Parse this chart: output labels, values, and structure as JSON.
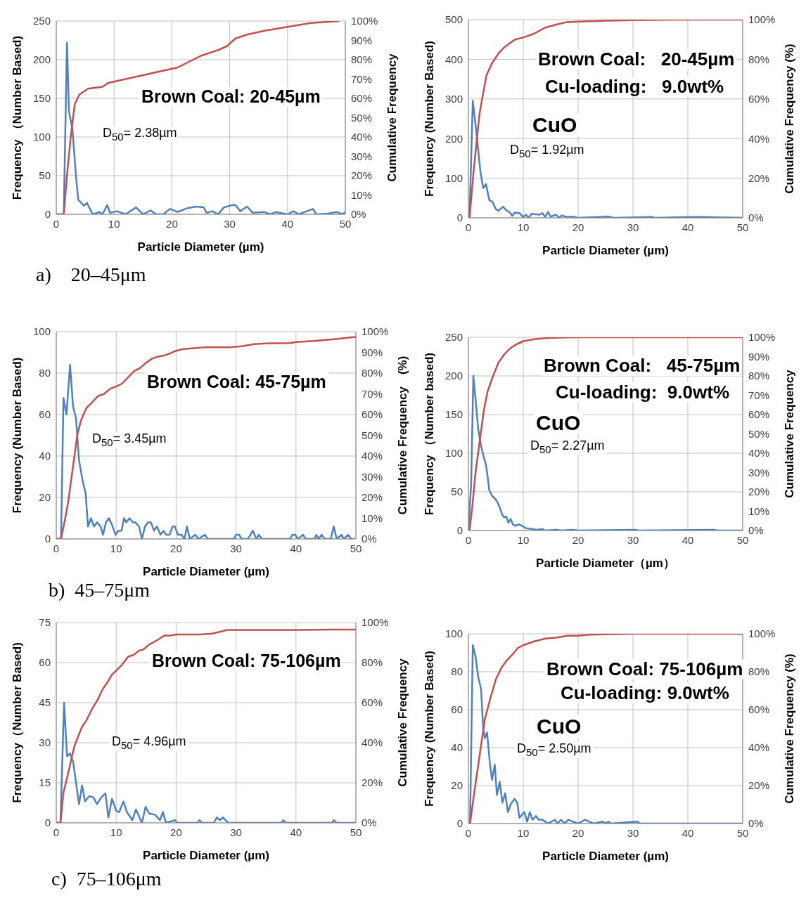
{
  "chart_data": [
    {
      "type": "line",
      "title": "Brown Coal: 20-45µm",
      "xlabel": "Particle Diameter (µm)",
      "ylabel": "Frequency （Number Based)",
      "y2label": "Cumulative Frequency",
      "annotations": [
        "D$_{50}$= 2.38µm",
        "a)    20–45μm"
      ],
      "xlim": [
        0,
        50
      ],
      "xticks": [
        0,
        10,
        20,
        30,
        40,
        50
      ],
      "ylim": [
        0,
        250
      ],
      "yticks": [
        0,
        50,
        100,
        150,
        200,
        250
      ],
      "y2lim": [
        0,
        100
      ],
      "y2ticks": [
        {
          "value": 0,
          "label": "0%"
        },
        {
          "value": 10,
          "label": "10%"
        },
        {
          "value": 20,
          "label": "20%"
        },
        {
          "value": 30,
          "label": "30%"
        },
        {
          "value": 40,
          "label": "40%"
        },
        {
          "value": 50,
          "label": "50%"
        },
        {
          "value": 60,
          "label": "60%"
        },
        {
          "value": 70,
          "label": "70%"
        },
        {
          "value": 80,
          "label": "80%"
        },
        {
          "value": 90,
          "label": "90%"
        },
        {
          "value": 100,
          "label": "100%"
        }
      ],
      "grid": true,
      "marker": "none",
      "series": [
        {
          "color": "#4f81bd",
          "x": [
            0,
            1.3,
            1.85,
            2.2,
            2.8,
            3.4,
            3.8,
            4.8,
            5.3,
            6.3,
            7.5,
            8,
            8.8,
            9.3,
            10.5,
            12,
            13.8,
            15,
            16.3,
            17.3,
            18.5,
            19.7,
            21,
            22.7,
            24.2,
            25.5,
            26,
            27,
            28,
            29,
            30.5,
            31,
            31.8,
            33,
            34,
            36,
            37,
            38,
            40,
            41,
            42,
            43,
            44.4,
            45,
            47,
            48.5,
            49.5,
            50
          ],
          "values": [
            0,
            0,
            222,
            133,
            110,
            50,
            19,
            11,
            15,
            0,
            3,
            0,
            12,
            2,
            4,
            0,
            9,
            0,
            5,
            0,
            0,
            7,
            3,
            8,
            10,
            9,
            2,
            4,
            0,
            9,
            12,
            12,
            4,
            10,
            2,
            3,
            0,
            3,
            0,
            4,
            0,
            3,
            7,
            0,
            1,
            3,
            0,
            3
          ]
        },
        {
          "color": "#c0504d",
          "axis": "y2",
          "x": [
            0,
            1.3,
            1.85,
            2.5,
            3.2,
            4,
            5.5,
            8,
            9,
            12,
            15,
            18,
            21,
            23,
            25,
            28,
            29.5,
            31,
            33,
            36,
            40,
            44,
            49
          ],
          "values": [
            0,
            0,
            20,
            40,
            57,
            62,
            65,
            66,
            68,
            70,
            72,
            74,
            76,
            79,
            82,
            85,
            87,
            91,
            93,
            95,
            97,
            99,
            100
          ]
        }
      ]
    },
    {
      "type": "line",
      "title": "Brown Coal:   20-45µm",
      "subtitle": "Cu-loading:   9.0wt%",
      "xlabel": "Particle Diameter (µm)",
      "ylabel": "Frequency (Number Based)",
      "y2label": "Cumulative Frequency (%)",
      "annotations": [
        "CuO",
        "D$_{50}$= 1.92µm"
      ],
      "xlim": [
        0,
        50
      ],
      "xticks": [
        0,
        10,
        20,
        30,
        40,
        50
      ],
      "ylim": [
        0,
        500
      ],
      "yticks": [
        0,
        100,
        200,
        300,
        400,
        500
      ],
      "y2lim": [
        0,
        100
      ],
      "y2ticks": [
        {
          "value": 0,
          "label": "0%"
        },
        {
          "value": 20,
          "label": "20%"
        },
        {
          "value": 40,
          "label": "40%"
        },
        {
          "value": 60,
          "label": "60%"
        },
        {
          "value": 80,
          "label": "80%"
        },
        {
          "value": 100,
          "label": "100%"
        }
      ],
      "grid": true,
      "marker": "none",
      "series": [
        {
          "color": "#4f81bd",
          "x": [
            0.2,
            0.8,
            1.5,
            2.2,
            2.7,
            3.2,
            3.8,
            4.4,
            5,
            5.5,
            6.3,
            7,
            7.5,
            8,
            8.4,
            9.3,
            10,
            10.5,
            11,
            11.5,
            13,
            13.5,
            14,
            14.5,
            15,
            16,
            16.5,
            17,
            18,
            19,
            20,
            25.5,
            26.5,
            33.5,
            34,
            40.7,
            42.7,
            50
          ],
          "values": [
            0,
            295,
            210,
            115,
            75,
            85,
            45,
            40,
            22,
            18,
            28,
            18,
            14,
            5,
            13,
            12,
            2,
            8,
            0,
            10,
            8,
            12,
            2,
            15,
            3,
            8,
            0,
            6,
            2,
            3,
            0,
            3,
            0,
            2,
            0,
            2,
            2,
            0
          ]
        },
        {
          "color": "#c0504d",
          "axis": "y2",
          "x": [
            0.2,
            1,
            2,
            2.5,
            3.3,
            4.3,
            5.5,
            6.5,
            7.5,
            8.5,
            10,
            12,
            14,
            16,
            18,
            20,
            25,
            30,
            38,
            50
          ],
          "values": [
            0,
            25,
            52,
            60,
            72,
            78,
            83,
            86,
            88,
            90,
            91,
            93,
            96,
            97.5,
            98.8,
            99,
            99.5,
            99.7,
            100,
            100
          ]
        }
      ]
    },
    {
      "type": "line",
      "title": "Brown Coal: 45-75µm",
      "xlabel": "Particle Diameter (µm)",
      "ylabel": "Frequency (Number Based)",
      "y2label": "Cumulative Frequency　(%)",
      "annotations": [
        "D$_{50}$= 3.45µm",
        "b)  45–75μm"
      ],
      "xlim": [
        0,
        50
      ],
      "xticks": [
        0,
        10,
        20,
        30,
        40,
        50
      ],
      "ylim": [
        0,
        100
      ],
      "yticks": [
        0,
        20,
        40,
        60,
        80,
        100
      ],
      "y2lim": [
        0,
        100
      ],
      "y2ticks": [
        {
          "value": 0,
          "label": "0%"
        },
        {
          "value": 10,
          "label": "10%"
        },
        {
          "value": 20,
          "label": "20%"
        },
        {
          "value": 30,
          "label": "30%"
        },
        {
          "value": 40,
          "label": "40%"
        },
        {
          "value": 50,
          "label": "50%"
        },
        {
          "value": 60,
          "label": "60%"
        },
        {
          "value": 70,
          "label": "70%"
        },
        {
          "value": 80,
          "label": "80%"
        },
        {
          "value": 90,
          "label": "90%"
        },
        {
          "value": 100,
          "label": "100%"
        }
      ],
      "grid": true,
      "marker": "none",
      "series": [
        {
          "color": "#4f81bd",
          "x": [
            0,
            0.8,
            1.2,
            1.7,
            2.3,
            2.8,
            3.3,
            3.8,
            4.4,
            4.9,
            5.3,
            5.8,
            6.3,
            6.8,
            7.4,
            7.8,
            8.3,
            8.8,
            9.4,
            9.9,
            10.4,
            10.9,
            11.3,
            11.7,
            12.2,
            12.8,
            13.2,
            13.8,
            14.3,
            14.8,
            15.3,
            15.8,
            16.3,
            16.8,
            17.4,
            17.9,
            18.3,
            18.9,
            19.4,
            19.8,
            20.3,
            20.9,
            21.4,
            21.8,
            22.3,
            23.2,
            23.7,
            24.8,
            25.3,
            29.7,
            30,
            30.5,
            31,
            32,
            32.8,
            33.4,
            33.8,
            34.3,
            39,
            39.4,
            39.9,
            40.3,
            41.2,
            41.6,
            43.1,
            43.4,
            43.8,
            44.3,
            44.8,
            45.8,
            46.3,
            46.8,
            47.6,
            48,
            48.7,
            49.2,
            49.8
          ],
          "values": [
            0,
            0,
            68,
            60,
            84,
            64,
            58,
            38,
            28,
            22,
            6,
            10,
            6,
            8,
            6,
            2,
            8,
            10,
            6,
            2,
            4,
            4,
            10,
            8,
            10,
            8,
            8,
            6,
            0,
            6,
            8,
            8,
            4,
            6,
            2,
            4,
            2,
            2,
            6,
            6,
            2,
            2,
            0,
            6,
            0,
            2,
            0,
            2,
            0,
            0,
            2,
            2,
            0,
            0,
            4,
            0,
            2,
            0,
            0,
            2,
            2,
            0,
            2,
            0,
            0,
            2,
            0,
            2,
            0,
            0,
            6,
            0,
            2,
            0,
            2,
            0,
            0
          ]
        },
        {
          "color": "#c0504d",
          "axis": "y2",
          "x": [
            0,
            0.8,
            1.5,
            2,
            2.8,
            3.5,
            4.1,
            5,
            6,
            7,
            8,
            9,
            10,
            11,
            12,
            13,
            14,
            15,
            16,
            17,
            18,
            19,
            19.7,
            21,
            23,
            25,
            29,
            31,
            33,
            35,
            39,
            40,
            43,
            45,
            47,
            48.5,
            50
          ],
          "values": [
            0,
            0,
            10,
            18,
            35,
            50,
            57,
            63,
            66,
            69,
            70,
            72.5,
            73.5,
            75,
            78,
            81,
            82.5,
            85,
            87,
            88,
            88.5,
            89.5,
            90.5,
            91.5,
            92,
            92.5,
            92.5,
            93,
            94,
            94.3,
            94.5,
            95,
            95.5,
            96,
            96.5,
            97,
            97.5
          ]
        }
      ]
    },
    {
      "type": "line",
      "title": "Brown Coal:   45-75µm",
      "subtitle": "Cu-loading:  9.0wt%",
      "xlabel": "Particle Diameter（µm）",
      "ylabel": "Frequency （Number based)",
      "y2label": "Cumulative Frequency",
      "annotations": [
        "CuO",
        "D$_{50}$= 2.27µm"
      ],
      "xlim": [
        0,
        50
      ],
      "xticks": [
        0,
        10,
        20,
        30,
        40,
        50
      ],
      "ylim": [
        0,
        250
      ],
      "yticks": [
        0,
        50,
        100,
        150,
        200,
        250
      ],
      "y2lim": [
        0,
        100
      ],
      "y2ticks": [
        {
          "value": 0,
          "label": "0%"
        },
        {
          "value": 10,
          "label": "10%"
        },
        {
          "value": 20,
          "label": "20%"
        },
        {
          "value": 30,
          "label": "30%"
        },
        {
          "value": 40,
          "label": "40%"
        },
        {
          "value": 50,
          "label": "50%"
        },
        {
          "value": 60,
          "label": "60%"
        },
        {
          "value": 70,
          "label": "70%"
        },
        {
          "value": 80,
          "label": "80%"
        },
        {
          "value": 90,
          "label": "90%"
        },
        {
          "value": 100,
          "label": "100%"
        }
      ],
      "grid": true,
      "marker": "none",
      "series": [
        {
          "color": "#4f81bd",
          "x": [
            0,
            0.5,
            0.9,
            1.3,
            1.8,
            2.3,
            2.8,
            3.2,
            3.5,
            3.8,
            4.3,
            5,
            5.4,
            5.8,
            6.2,
            6.5,
            6.9,
            7.3,
            7.7,
            8.1,
            8.6,
            9.2,
            9.8,
            10.5,
            11.5,
            12.5,
            13.5,
            14,
            16,
            17,
            19,
            20,
            30.5,
            31,
            44.8,
            45.3,
            50
          ],
          "values": [
            0,
            60,
            200,
            170,
            130,
            110,
            95,
            85,
            70,
            52,
            45,
            40,
            35,
            28,
            20,
            17,
            18,
            10,
            15,
            8,
            6,
            8,
            6,
            3,
            2,
            1,
            2,
            0,
            1,
            0,
            1,
            0,
            1,
            0,
            1,
            0,
            0
          ]
        },
        {
          "color": "#c0504d",
          "axis": "y2",
          "x": [
            0.2,
            0.7,
            1.3,
            2,
            2.8,
            3.5,
            4.5,
            5.5,
            6.5,
            7.5,
            8.5,
            10,
            12,
            15,
            20,
            50
          ],
          "values": [
            0,
            12,
            30,
            45,
            62,
            72,
            80,
            87,
            91,
            94,
            96,
            98,
            99,
            99.7,
            100,
            100
          ]
        }
      ]
    },
    {
      "type": "line",
      "title": "Brown Coal: 75-106µm",
      "xlabel": "Particle Diameter (µm)",
      "ylabel": "Frequency（Number Based)",
      "y2label": "Cumulative Frequency",
      "annotations": [
        "D$_{50}$= 4.96µm",
        "c)  75–106μm"
      ],
      "xlim": [
        0,
        50
      ],
      "xticks": [
        0,
        10,
        20,
        30,
        40,
        50
      ],
      "ylim": [
        0,
        75
      ],
      "yticks": [
        0,
        15,
        30,
        45,
        60,
        75
      ],
      "y2lim": [
        0,
        100
      ],
      "y2ticks": [
        {
          "value": 0,
          "label": "0%"
        },
        {
          "value": 20,
          "label": "20%"
        },
        {
          "value": 40,
          "label": "40%"
        },
        {
          "value": 60,
          "label": "60%"
        },
        {
          "value": 80,
          "label": "80%"
        },
        {
          "value": 100,
          "label": "100%"
        }
      ],
      "grid": true,
      "marker": "none",
      "series": [
        {
          "color": "#4f81bd",
          "x": [
            0,
            0.7,
            1.3,
            1.8,
            2.3,
            2.8,
            3.3,
            3.8,
            4.3,
            4.8,
            5.5,
            6.2,
            6.8,
            7.5,
            8.2,
            8.7,
            9.3,
            10,
            10.5,
            11.2,
            11.8,
            12.7,
            13.3,
            14.3,
            14.9,
            15.5,
            16.5,
            17.3,
            17.8,
            18.3,
            19.8,
            20.2,
            23.6,
            23.9,
            24.3,
            26.3,
            26.8,
            27.3,
            27.8,
            28.7,
            37.6,
            37.9,
            38.3,
            46,
            46.3,
            46.8,
            50
          ],
          "values": [
            0,
            0,
            45,
            25,
            26,
            23,
            15,
            7,
            14,
            8,
            10,
            9.5,
            7,
            9.5,
            11,
            2,
            9,
            4.5,
            4,
            8,
            4,
            1,
            5,
            0,
            6,
            3.5,
            3,
            1,
            4,
            0,
            1,
            0,
            0,
            1,
            0,
            0,
            2,
            1,
            2,
            0,
            0,
            1,
            0,
            0,
            1,
            0,
            0
          ]
        },
        {
          "color": "#c0504d",
          "axis": "y2",
          "x": [
            0,
            0.7,
            1.2,
            2,
            3,
            3.5,
            4.3,
            5,
            6,
            7,
            7.8,
            8.5,
            9.3,
            10,
            11,
            12,
            13,
            13.8,
            14.5,
            15.5,
            17,
            18,
            19,
            20,
            24,
            26,
            27.5,
            28.5,
            40,
            46,
            50
          ],
          "values": [
            0,
            0,
            15,
            25,
            38,
            42,
            48,
            51,
            57,
            62,
            67,
            70,
            74,
            76,
            79,
            83,
            84,
            86,
            86.5,
            89,
            91.5,
            93.5,
            93.5,
            94,
            94,
            94.5,
            95.5,
            96.3,
            96.3,
            96.5,
            96.5
          ]
        }
      ]
    },
    {
      "type": "line",
      "title": "Brown Coal: 75-106µm",
      "subtitle": "Cu-loading: 9.0wt%",
      "xlabel": "Particle Diameter (µm)",
      "ylabel": "Frequency (Number Based)",
      "y2label": "Cumulative Frequency (%)",
      "annotations": [
        "CuO",
        "D$_{50}$= 2.50µm"
      ],
      "xlim": [
        0,
        50
      ],
      "xticks": [
        0,
        10,
        20,
        30,
        40,
        50
      ],
      "ylim": [
        0,
        100
      ],
      "yticks": [
        0,
        20,
        40,
        60,
        80,
        100
      ],
      "y2lim": [
        0,
        100
      ],
      "y2ticks": [
        {
          "value": 0,
          "label": "0%"
        },
        {
          "value": 20,
          "label": "20%"
        },
        {
          "value": 40,
          "label": "40%"
        },
        {
          "value": 60,
          "label": "60%"
        },
        {
          "value": 80,
          "label": "80%"
        },
        {
          "value": 100,
          "label": "100%"
        }
      ],
      "grid": true,
      "marker": "none",
      "series": [
        {
          "color": "#4f81bd",
          "x": [
            0.3,
            0.8,
            1.3,
            1.8,
            2.3,
            2.7,
            3,
            3.4,
            3.9,
            4.3,
            4.8,
            5.2,
            5.7,
            6.2,
            6.7,
            7.2,
            7.7,
            8.4,
            8.9,
            9.3,
            10.2,
            10.7,
            11.2,
            11.7,
            12.3,
            12.8,
            13.5,
            14.5,
            15.8,
            16.2,
            16.9,
            17.5,
            18.2,
            19,
            20,
            21.3,
            22,
            22.8,
            24.5,
            25,
            25.5,
            26,
            30.8,
            31.2,
            50
          ],
          "values": [
            0,
            94,
            88,
            77,
            71,
            50,
            45,
            48,
            32,
            23,
            31,
            15,
            22,
            11,
            16,
            6,
            10,
            13,
            11,
            3,
            6,
            1,
            6,
            2,
            4,
            2,
            2,
            0,
            2,
            0,
            2,
            0,
            2,
            1,
            0,
            2,
            1,
            0,
            1,
            0,
            1,
            0,
            1,
            0,
            0
          ]
        },
        {
          "color": "#c0504d",
          "axis": "y2",
          "x": [
            0.3,
            1,
            2,
            3,
            4,
            5,
            6,
            7,
            8,
            9,
            10,
            12,
            14,
            16,
            18,
            20,
            22,
            30,
            50
          ],
          "values": [
            0,
            15,
            35,
            55,
            66,
            76,
            82,
            86,
            89,
            92.5,
            94,
            96,
            97.5,
            98,
            99,
            99,
            99.5,
            100,
            100
          ]
        }
      ]
    }
  ]
}
